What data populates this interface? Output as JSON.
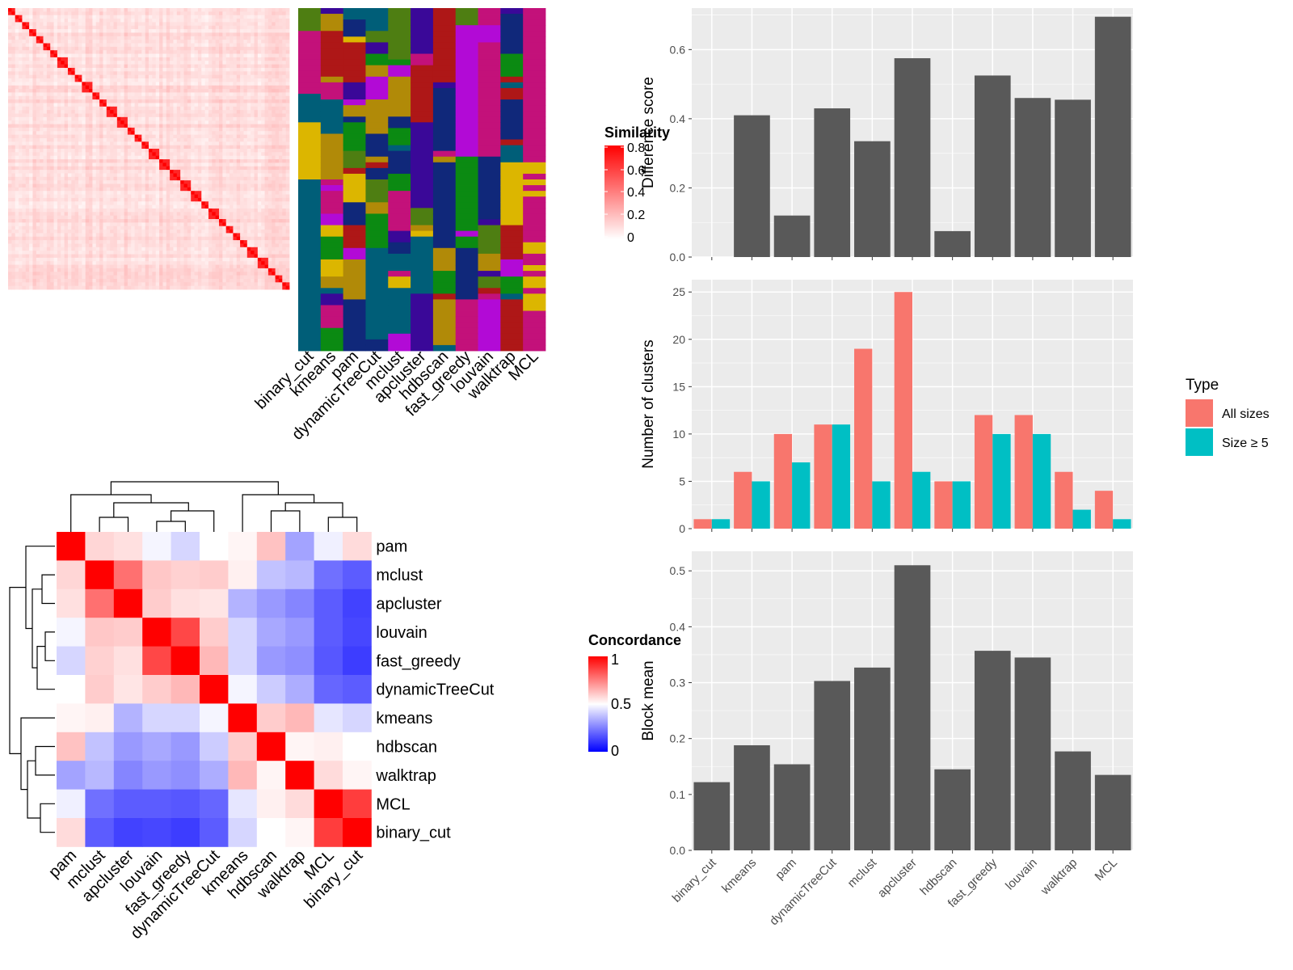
{
  "methods_order": [
    "binary_cut",
    "kmeans",
    "pam",
    "dynamicTreeCut",
    "mclust",
    "apcluster",
    "hdbscan",
    "fast_greedy",
    "louvain",
    "walktrap",
    "MCL"
  ],
  "legends": {
    "similarity": {
      "title": "Similarity",
      "ticks": [
        "0.8",
        "0.6",
        "0.4",
        "0.2",
        "0"
      ]
    },
    "concordance": {
      "title": "Concordance",
      "ticks": [
        "1",
        "0.5",
        "0"
      ]
    },
    "type": {
      "title": "Type",
      "items": [
        {
          "label": "All sizes",
          "color": "#F8766D"
        },
        {
          "label": "Size ≥ 5",
          "color": "#00BFC4"
        }
      ]
    }
  },
  "colors": {
    "bar": "#595959",
    "panel": "#EBEBEB",
    "grid": "#FFFFFF",
    "heat_high": "#FF0000",
    "heat_mid": "#FFFFFF",
    "heat_low": "#0000FF",
    "cluster_palette": [
      "#C3117A",
      "#0B8A12",
      "#4E7E12",
      "#005E78",
      "#3A0898",
      "#B20AD6",
      "#DCB600",
      "#B18A08",
      "#AE1717",
      "#10287A"
    ]
  },
  "concordance_labels": [
    "pam",
    "mclust",
    "apcluster",
    "louvain",
    "fast_greedy",
    "dynamicTreeCut",
    "kmeans",
    "hdbscan",
    "walktrap",
    "MCL",
    "binary_cut"
  ],
  "concordance_matrix": [
    [
      1.0,
      0.58,
      0.56,
      0.48,
      0.42,
      0.5,
      0.52,
      0.62,
      0.32,
      0.47,
      0.57
    ],
    [
      0.58,
      1.0,
      0.78,
      0.61,
      0.59,
      0.6,
      0.53,
      0.38,
      0.36,
      0.22,
      0.18
    ],
    [
      0.56,
      0.78,
      1.0,
      0.6,
      0.56,
      0.55,
      0.35,
      0.3,
      0.26,
      0.18,
      0.13
    ],
    [
      0.48,
      0.61,
      0.6,
      1.0,
      0.86,
      0.6,
      0.42,
      0.33,
      0.3,
      0.18,
      0.14
    ],
    [
      0.42,
      0.59,
      0.56,
      0.86,
      1.0,
      0.64,
      0.42,
      0.3,
      0.28,
      0.17,
      0.12
    ],
    [
      0.5,
      0.6,
      0.55,
      0.6,
      0.64,
      1.0,
      0.48,
      0.4,
      0.34,
      0.2,
      0.18
    ],
    [
      0.52,
      0.53,
      0.35,
      0.42,
      0.42,
      0.48,
      1.0,
      0.6,
      0.64,
      0.45,
      0.42
    ],
    [
      0.62,
      0.38,
      0.3,
      0.33,
      0.3,
      0.4,
      0.6,
      1.0,
      0.52,
      0.53,
      0.5
    ],
    [
      0.32,
      0.36,
      0.26,
      0.3,
      0.28,
      0.34,
      0.64,
      0.52,
      1.0,
      0.57,
      0.52
    ],
    [
      0.47,
      0.22,
      0.18,
      0.18,
      0.17,
      0.2,
      0.45,
      0.53,
      0.57,
      1.0,
      0.88
    ],
    [
      0.57,
      0.18,
      0.13,
      0.14,
      0.12,
      0.18,
      0.42,
      0.5,
      0.52,
      0.88,
      1.0
    ]
  ],
  "chart_data": [
    {
      "type": "heatmap",
      "title": "",
      "x_labels": [
        "binary_cut",
        "kmeans",
        "pam",
        "dynamicTreeCut",
        "mclust",
        "apcluster",
        "hdbscan",
        "fast_greedy",
        "louvain",
        "walktrap",
        "MCL"
      ],
      "legend_title": "Similarity",
      "value_range": [
        0,
        0.85
      ]
    },
    {
      "type": "bar",
      "categories": [
        "binary_cut",
        "kmeans",
        "pam",
        "dynamicTreeCut",
        "mclust",
        "apcluster",
        "hdbscan",
        "fast_greedy",
        "louvain",
        "walktrap",
        "MCL"
      ],
      "values": [
        0,
        0.41,
        0.12,
        0.43,
        0.335,
        0.575,
        0.075,
        0.525,
        0.46,
        0.455,
        0.695
      ],
      "ylabel": "Difference score",
      "ylim": [
        0,
        0.72
      ],
      "yticks": [
        0.0,
        0.2,
        0.4,
        0.6
      ],
      "ytick_labels": [
        "0.0",
        "0.2",
        "0.4",
        "0.6"
      ],
      "grid": true
    },
    {
      "type": "bar",
      "categories": [
        "binary_cut",
        "kmeans",
        "pam",
        "dynamicTreeCut",
        "mclust",
        "apcluster",
        "hdbscan",
        "fast_greedy",
        "louvain",
        "walktrap",
        "MCL"
      ],
      "series": [
        {
          "name": "All sizes",
          "values": [
            1,
            6,
            10,
            11,
            19,
            25,
            5,
            12,
            12,
            6,
            4
          ]
        },
        {
          "name": "Size ≥ 5",
          "values": [
            1,
            5,
            7,
            11,
            5,
            6,
            5,
            10,
            10,
            2,
            1
          ]
        }
      ],
      "ylabel": "Number of clusters",
      "ylim": [
        0,
        26.3
      ],
      "yticks": [
        0,
        5,
        10,
        15,
        20,
        25
      ],
      "ytick_labels": [
        "0",
        "5",
        "10",
        "15",
        "20",
        "25"
      ],
      "legend_placement": "right",
      "grid": true
    },
    {
      "type": "bar",
      "categories": [
        "binary_cut",
        "kmeans",
        "pam",
        "dynamicTreeCut",
        "mclust",
        "apcluster",
        "hdbscan",
        "fast_greedy",
        "louvain",
        "walktrap",
        "MCL"
      ],
      "values": [
        0.122,
        0.188,
        0.154,
        0.303,
        0.327,
        0.51,
        0.145,
        0.357,
        0.345,
        0.177,
        0.135
      ],
      "xtick_labels": [
        "binary_cut",
        "kmeans",
        "pam",
        "dynamicTreeCut",
        "mclust",
        "apcluster",
        "hdbscan",
        "fast_greedy",
        "louvain",
        "walktrap",
        "MCL"
      ],
      "ylabel": "Block mean",
      "ylim": [
        0,
        0.535
      ],
      "yticks": [
        0.0,
        0.1,
        0.2,
        0.3,
        0.4,
        0.5
      ],
      "ytick_labels": [
        "0.0",
        "0.1",
        "0.2",
        "0.3",
        "0.4",
        "0.5"
      ],
      "grid": true
    },
    {
      "type": "heatmap",
      "title": "",
      "row_labels": [
        "pam",
        "mclust",
        "apcluster",
        "louvain",
        "fast_greedy",
        "dynamicTreeCut",
        "kmeans",
        "hdbscan",
        "walktrap",
        "MCL",
        "binary_cut"
      ],
      "col_labels": [
        "pam",
        "mclust",
        "apcluster",
        "louvain",
        "fast_greedy",
        "dynamicTreeCut",
        "kmeans",
        "hdbscan",
        "walktrap",
        "MCL",
        "binary_cut"
      ],
      "legend_title": "Concordance",
      "value_range": [
        0,
        1
      ]
    }
  ]
}
